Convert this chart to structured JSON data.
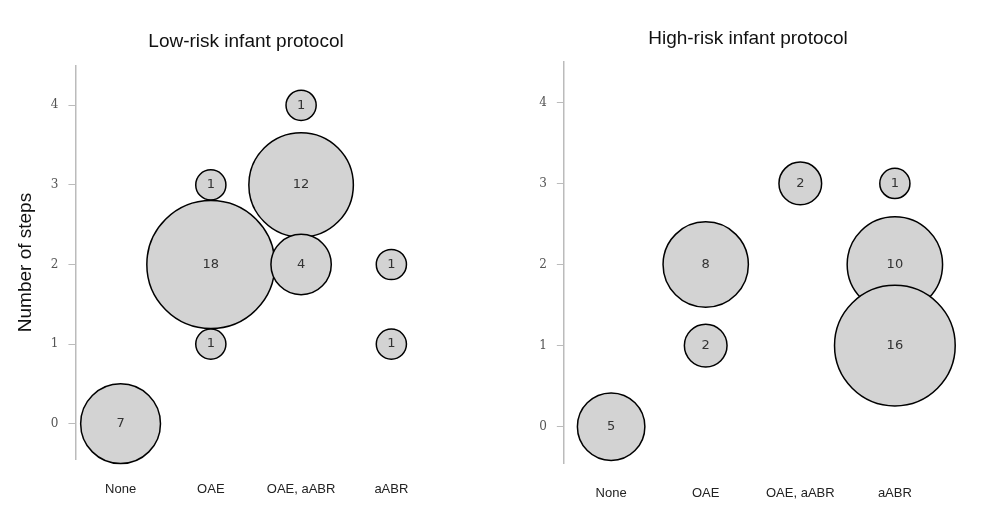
{
  "chart_data": [
    {
      "type": "bubble",
      "title": "Low-risk infant protocol",
      "ylabel": "Number of steps",
      "categories": [
        "None",
        "OAE",
        "OAE, aABR",
        "aABR"
      ],
      "series": [
        {
          "color": "#d3d3d3",
          "x": [
            "None",
            "OAE",
            "OAE",
            "OAE",
            "OAE, aABR",
            "OAE, aABR",
            "OAE, aABR",
            "aABR",
            "aABR"
          ],
          "values": [
            0,
            3,
            2,
            1,
            4,
            3,
            2,
            2,
            1
          ],
          "sizes": [
            7,
            1,
            18,
            1,
            1,
            12,
            4,
            1,
            1
          ],
          "value_labels": [
            "7",
            "1",
            "18",
            "1",
            "1",
            "12",
            "4",
            "1",
            "1"
          ]
        }
      ],
      "ylim": [
        -0.45,
        4.5
      ],
      "yticks": [
        0,
        1,
        2,
        3,
        4
      ]
    },
    {
      "type": "bubble",
      "title": "High-risk infant protocol",
      "categories": [
        "None",
        "OAE",
        "OAE, aABR",
        "aABR"
      ],
      "series": [
        {
          "color": "#d3d3d3",
          "x": [
            "None",
            "OAE",
            "OAE",
            "OAE, aABR",
            "aABR",
            "aABR",
            "aABR"
          ],
          "values": [
            0,
            2,
            1,
            3,
            3,
            2,
            1
          ],
          "sizes": [
            5,
            8,
            2,
            2,
            1,
            10,
            16
          ],
          "value_labels": [
            "5",
            "8",
            "2",
            "2",
            "1",
            "10",
            "16"
          ]
        }
      ],
      "ylim": [
        -0.45,
        4.5
      ],
      "yticks": [
        0,
        1,
        2,
        3,
        4
      ]
    }
  ]
}
